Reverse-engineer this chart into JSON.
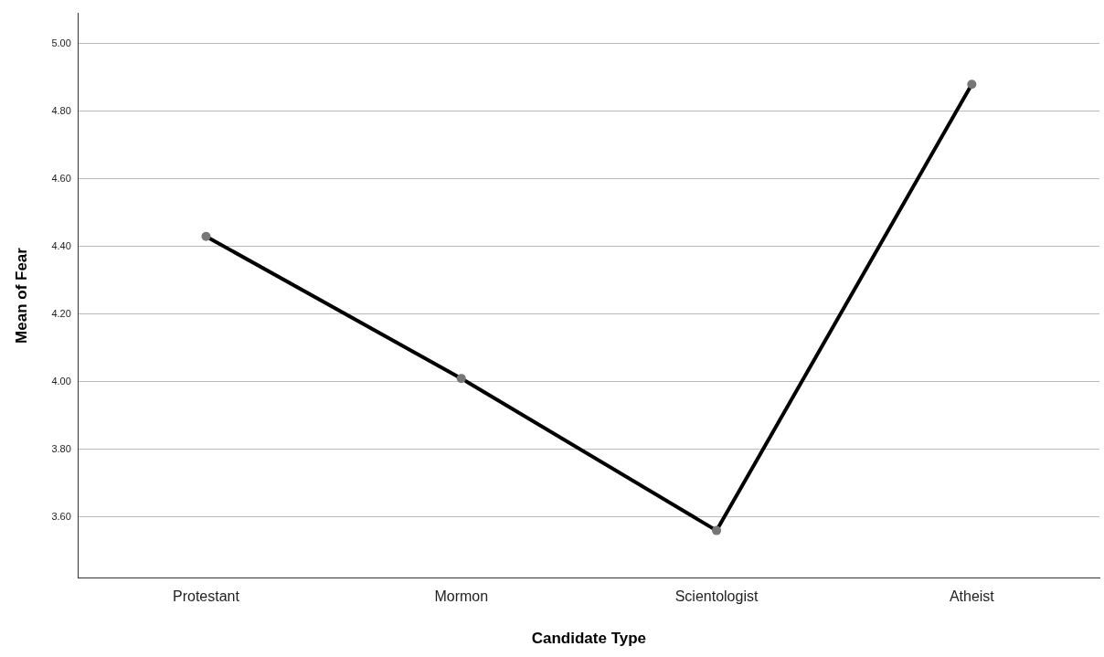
{
  "chart_data": {
    "type": "line",
    "xlabel": "Candidate Type",
    "ylabel": "Mean of Fear",
    "categories": [
      "Protestant",
      "Mormon",
      "Scientologist",
      "Atheist"
    ],
    "series": [
      {
        "color": "#000000",
        "values": [
          4.43,
          4.01,
          3.56,
          4.88
        ]
      }
    ],
    "ylim": [
      3.42,
      5.09
    ],
    "yticks": [
      {
        "value": 3.6,
        "label": "3.60"
      },
      {
        "value": 3.8,
        "label": "3.80"
      },
      {
        "value": 4.0,
        "label": "4.00"
      },
      {
        "value": 4.2,
        "label": "4.20"
      },
      {
        "value": 4.4,
        "label": "4.40"
      },
      {
        "value": 4.6,
        "label": "4.60"
      },
      {
        "value": 4.8,
        "label": "4.80"
      },
      {
        "value": 5.0,
        "label": "5.00"
      }
    ],
    "grid": "y",
    "legend": false,
    "marker": "circle",
    "line_style": "solid"
  }
}
